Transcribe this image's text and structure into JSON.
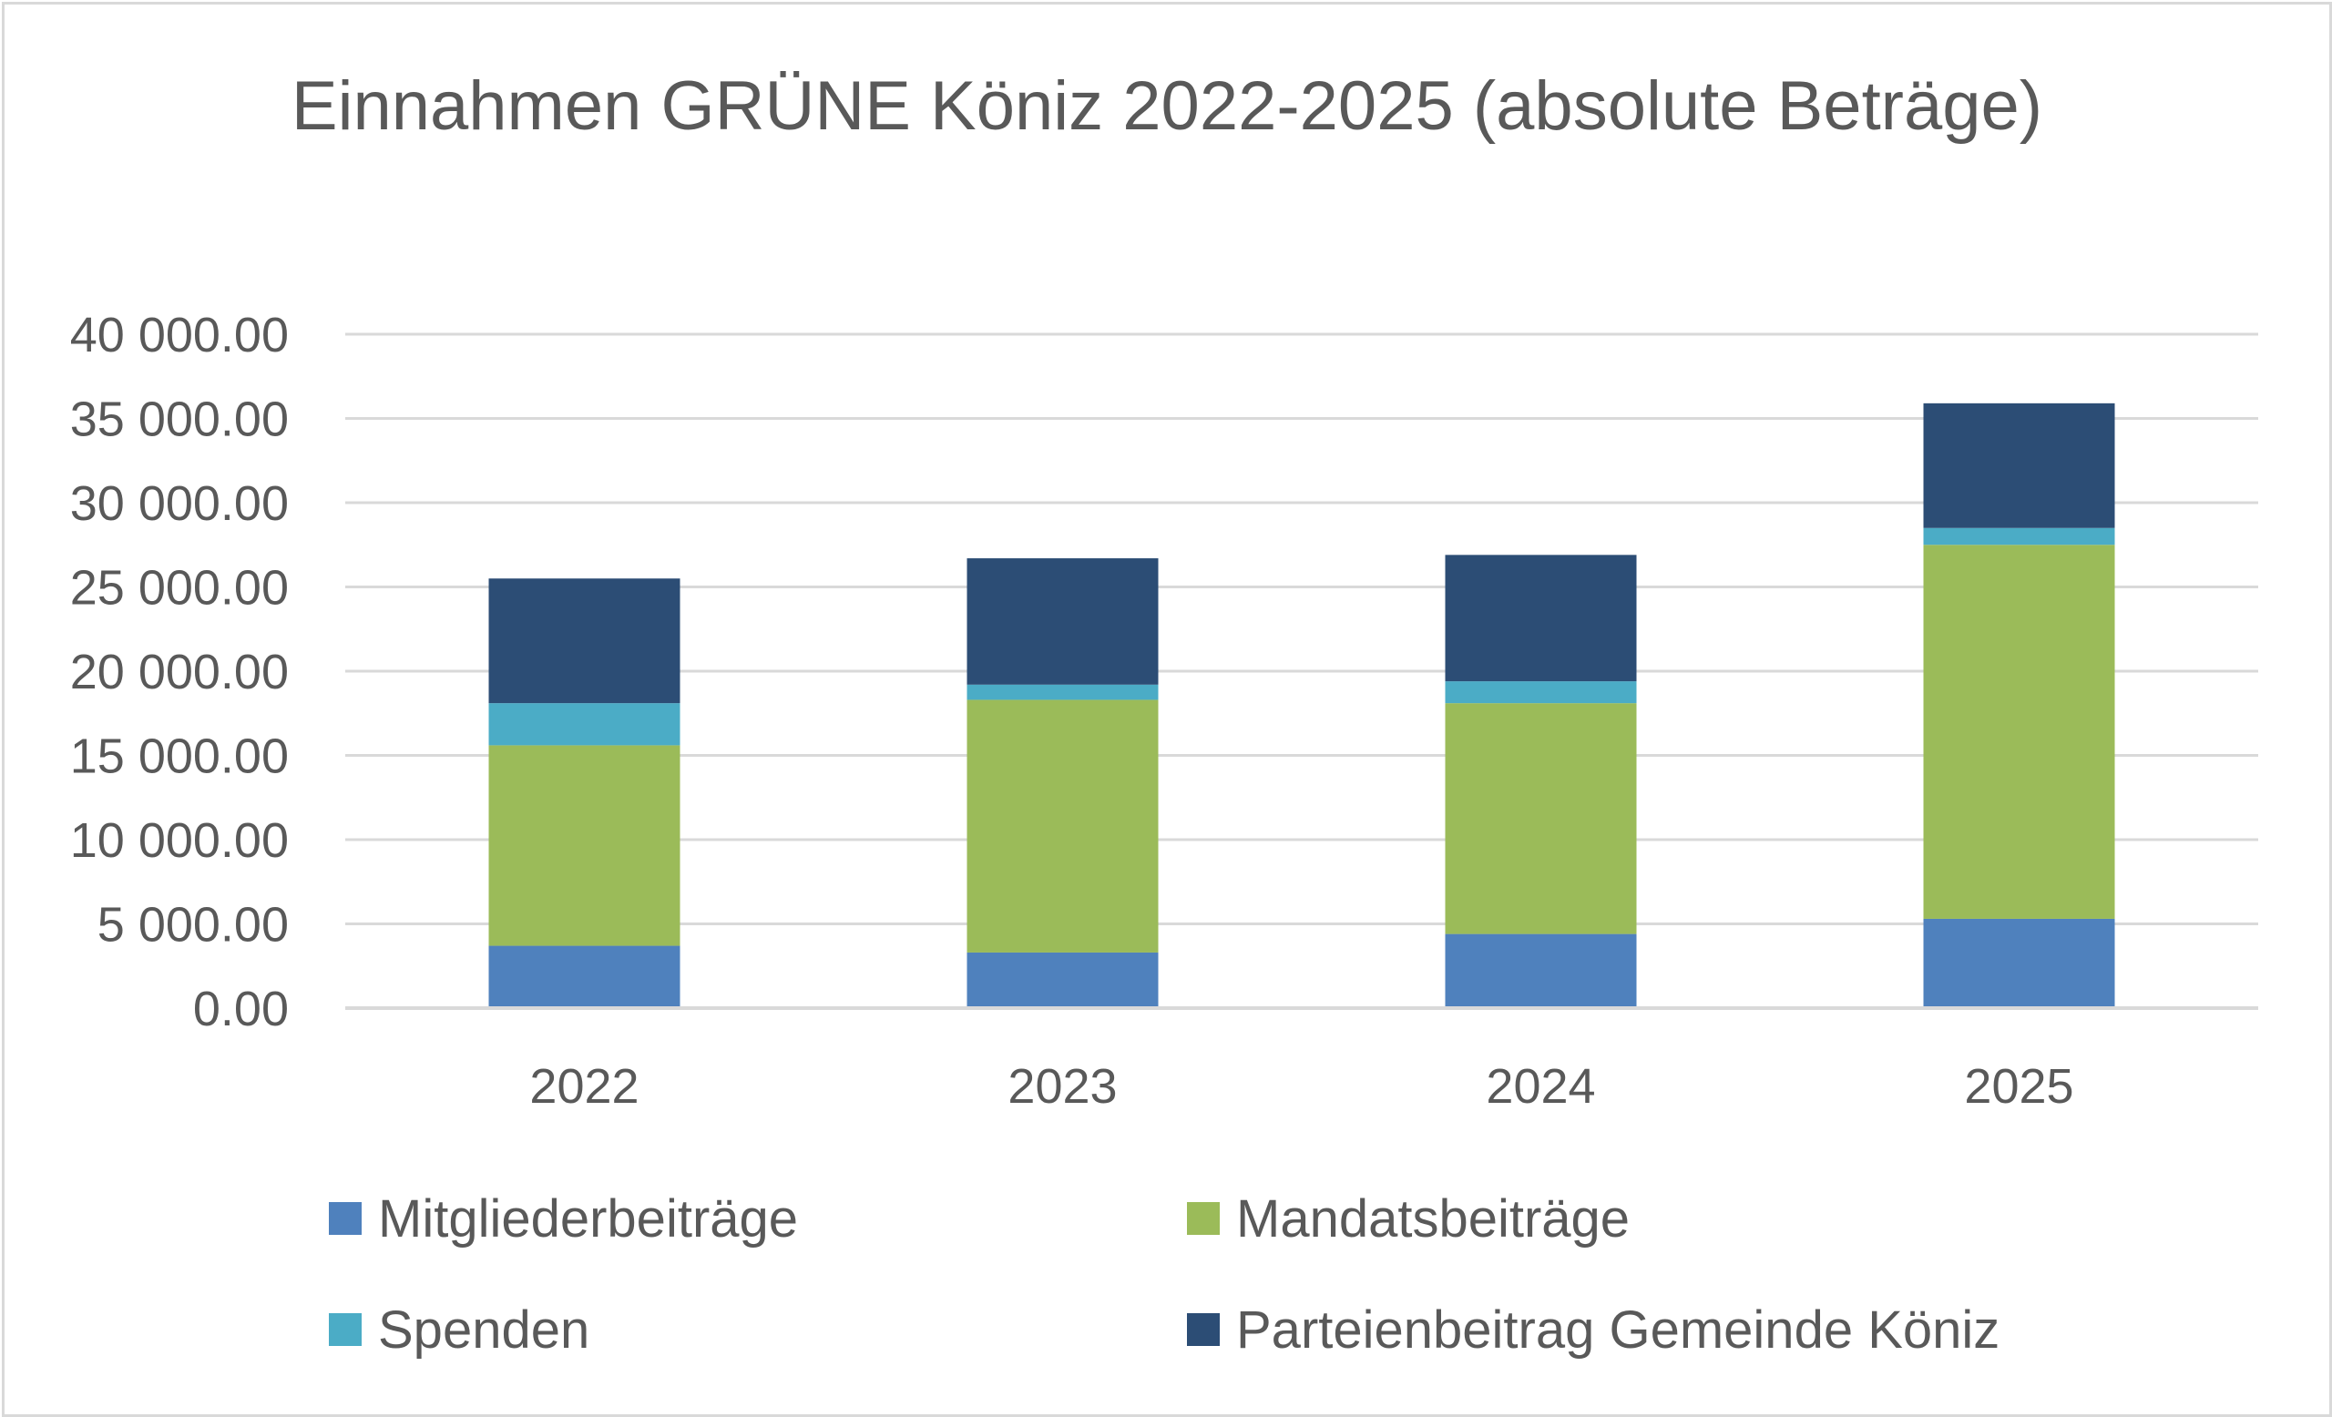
{
  "chart_data": {
    "type": "bar",
    "stacked": true,
    "title": "Einnahmen GRÜNE Köniz 2022-2025 (absolute Beträge)",
    "xlabel": "",
    "ylabel": "",
    "categories": [
      "2022",
      "2023",
      "2024",
      "2025"
    ],
    "ylim": [
      0,
      40000
    ],
    "yticks": [
      0,
      5000,
      10000,
      15000,
      20000,
      25000,
      30000,
      35000,
      40000
    ],
    "ytick_labels": [
      "0.00",
      "5 000.00",
      "10 000.00",
      "15 000.00",
      "20 000.00",
      "25 000.00",
      "30 000.00",
      "35 000.00",
      "40 000.00"
    ],
    "grid": true,
    "legend_position": "bottom",
    "series": [
      {
        "name": "Mitgliederbeiträge",
        "color": "#4f81bd",
        "values": [
          3700,
          3300,
          4400,
          5300
        ]
      },
      {
        "name": "Mandatsbeiträge",
        "color": "#9bbb59",
        "values": [
          11900,
          15000,
          13700,
          22200
        ]
      },
      {
        "name": "Spenden",
        "color": "#4bacc6",
        "values": [
          2500,
          900,
          1300,
          1000
        ]
      },
      {
        "name": "Parteienbeitrag Gemeinde Köniz",
        "color": "#2c4d75",
        "values": [
          7400,
          7500,
          7500,
          7400
        ]
      }
    ]
  }
}
